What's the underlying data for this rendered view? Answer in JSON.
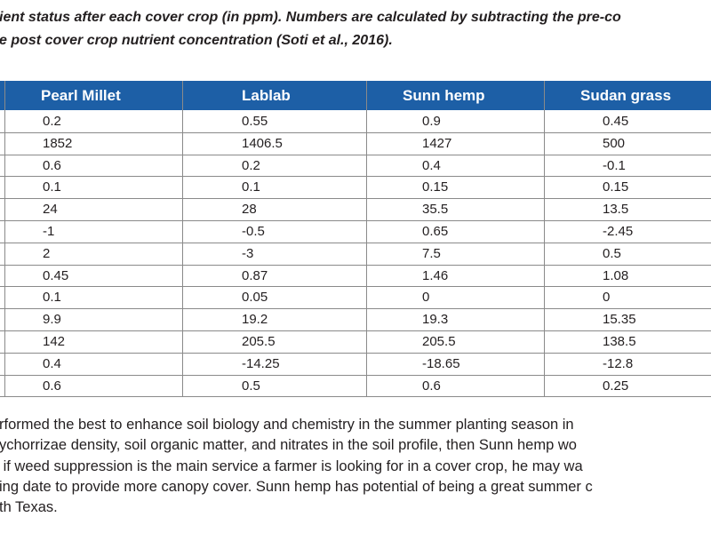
{
  "caption": {
    "lines": [
      "ient status after each cover crop (in ppm). Numbers are calculated by subtracting the pre-co",
      "e post cover crop nutrient concentration (Soti et al., 2016)."
    ]
  },
  "table": {
    "columns": [
      "Pearl Millet",
      "Lablab",
      "Sunn hemp",
      "Sudan grass"
    ],
    "rows": [
      [
        "0.2",
        "0.55",
        "0.9",
        "0.45"
      ],
      [
        "1852",
        "1406.5",
        "1427",
        "500"
      ],
      [
        "0.6",
        "0.2",
        "0.4",
        "-0.1"
      ],
      [
        "0.1",
        "0.1",
        "0.15",
        "0.15"
      ],
      [
        "24",
        "28",
        "35.5",
        "13.5"
      ],
      [
        "-1",
        "-0.5",
        "0.65",
        "-2.45"
      ],
      [
        "2",
        "-3",
        "7.5",
        "0.5"
      ],
      [
        "0.45",
        "0.87",
        "1.46",
        "1.08"
      ],
      [
        "0.1",
        "0.05",
        "0",
        "0"
      ],
      [
        "9.9",
        "19.2",
        "19.3",
        "15.35"
      ],
      [
        "142",
        "205.5",
        "205.5",
        "138.5"
      ],
      [
        "0.4",
        "-14.25",
        "-18.65",
        "-12.8"
      ],
      [
        "0.6",
        "0.5",
        "0.6",
        "0.25"
      ]
    ]
  },
  "paragraph": {
    "lines": [
      "rformed the best to enhance soil biology and chemistry in the summer planting season in",
      "ychorrizae density, soil organic matter, and nitrates in the soil profile, then Sunn hemp wo",
      " if weed suppression is the main service a farmer is looking for in a cover crop, he may wa",
      "ing date to provide more canopy cover. Sunn hemp has potential of being a great summer c",
      "th Texas."
    ]
  }
}
